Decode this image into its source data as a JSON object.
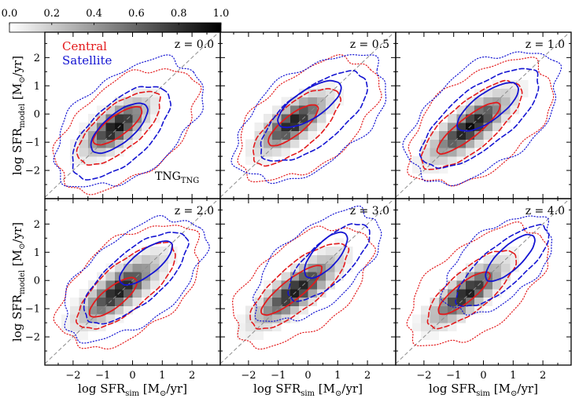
{
  "chart_data": {
    "type": "heatmap",
    "title": "",
    "xlabel": {
      "main": "log SFR",
      "sub": "sim",
      "unit_pre": " [M",
      "unit_sub": "⊙",
      "unit_post": "/yr]"
    },
    "ylabel": {
      "main": "log SFR",
      "sub": "model",
      "unit_pre": " [M",
      "unit_sub": "⊙",
      "unit_post": "/yr]"
    },
    "xlim": [
      -2.95,
      2.95
    ],
    "ylim": [
      -3.0,
      2.9
    ],
    "xticks": [
      -2,
      -1,
      0,
      1,
      2
    ],
    "xtick_labels": [
      "−2",
      "−1",
      "0",
      "1",
      "2"
    ],
    "yticks": [
      -2,
      -1,
      0,
      1,
      2
    ],
    "ytick_labels": [
      "−2",
      "−1",
      "0",
      "1",
      "2"
    ],
    "one_to_one_line": true,
    "heatmap_bin": 0.3,
    "colorbar": {
      "range": [
        0,
        1
      ],
      "ticks": [
        0,
        0.2,
        0.4,
        0.6,
        0.8,
        1.0
      ],
      "labels": [
        "0.0",
        "0.2",
        "0.4",
        "0.6",
        "0.8",
        "1.0"
      ],
      "cmap": "Greys"
    },
    "legend": [
      {
        "label": "Central",
        "color": "#e31a1c"
      },
      {
        "label": "Satellite",
        "color": "#1414d2"
      }
    ],
    "annotation": {
      "text": "TNG",
      "sub": "TNG"
    },
    "panels": [
      {
        "label": "z = 0.0",
        "density": {
          "cx": -0.55,
          "cy": -0.45,
          "sigma_major": 0.75,
          "sigma_minor": 0.32,
          "angle": 40,
          "peak": 0.95
        },
        "central": [
          {
            "style": "solid",
            "cx": -0.5,
            "cy": -0.42,
            "a": 1.0,
            "b": 0.35,
            "angle": 38
          },
          {
            "style": "dashed",
            "cx": -0.45,
            "cy": -0.5,
            "a": 1.75,
            "b": 0.75,
            "angle": 42
          },
          {
            "style": "dotted",
            "cx": -0.2,
            "cy": -0.55,
            "a": 2.8,
            "b": 1.6,
            "angle": 40
          }
        ],
        "satellite": [
          {
            "style": "solid",
            "cx": -0.45,
            "cy": -0.5,
            "a": 1.2,
            "b": 0.5,
            "angle": 42
          },
          {
            "style": "dashed",
            "cx": -0.4,
            "cy": -0.65,
            "a": 2.1,
            "b": 1.0,
            "angle": 45
          },
          {
            "style": "dotted",
            "cx": -0.15,
            "cy": -0.35,
            "a": 2.9,
            "b": 1.7,
            "angle": 40
          }
        ]
      },
      {
        "label": "z = 0.5",
        "density": {
          "cx": -0.5,
          "cy": -0.3,
          "sigma_major": 0.8,
          "sigma_minor": 0.32,
          "angle": 40,
          "peak": 0.9
        },
        "central": [
          {
            "style": "solid",
            "cx": -0.5,
            "cy": -0.4,
            "a": 1.05,
            "b": 0.35,
            "angle": 40
          },
          {
            "style": "dashed",
            "cx": -0.4,
            "cy": -0.45,
            "a": 1.85,
            "b": 0.75,
            "angle": 42
          },
          {
            "style": "dotted",
            "cx": 0.0,
            "cy": -0.2,
            "a": 2.8,
            "b": 1.55,
            "angle": 40
          }
        ],
        "satellite": [
          {
            "style": "solid",
            "cx": 0.05,
            "cy": 0.35,
            "a": 1.25,
            "b": 0.5,
            "angle": 35
          },
          {
            "style": "dashed",
            "cx": 0.2,
            "cy": -0.1,
            "a": 2.2,
            "b": 0.95,
            "angle": 40
          },
          {
            "style": "dotted",
            "cx": 0.1,
            "cy": -0.15,
            "a": 2.95,
            "b": 1.65,
            "angle": 38
          }
        ]
      },
      {
        "label": "z = 1.0",
        "density": {
          "cx": -0.45,
          "cy": -0.45,
          "sigma_major": 0.95,
          "sigma_minor": 0.32,
          "angle": 40,
          "peak": 0.95
        },
        "central": [
          {
            "style": "solid",
            "cx": -0.5,
            "cy": -0.5,
            "a": 1.35,
            "b": 0.35,
            "angle": 40
          },
          {
            "style": "dashed",
            "cx": -0.4,
            "cy": -0.4,
            "a": 2.15,
            "b": 0.8,
            "angle": 42
          },
          {
            "style": "dotted",
            "cx": -0.1,
            "cy": -0.3,
            "a": 2.85,
            "b": 1.6,
            "angle": 40
          }
        ],
        "satellite": [
          {
            "style": "solid",
            "cx": 0.15,
            "cy": 0.25,
            "a": 1.25,
            "b": 0.48,
            "angle": 38
          },
          {
            "style": "dashed",
            "cx": -0.1,
            "cy": -0.15,
            "a": 2.45,
            "b": 1.0,
            "angle": 40
          },
          {
            "style": "dotted",
            "cx": 0.0,
            "cy": -0.1,
            "a": 3.0,
            "b": 1.7,
            "angle": 40
          }
        ]
      },
      {
        "label": "z = 2.0",
        "density": {
          "cx": -0.45,
          "cy": -0.35,
          "sigma_major": 0.95,
          "sigma_minor": 0.33,
          "angle": 40,
          "peak": 0.9
        },
        "central": [
          {
            "style": "solid",
            "cx": -0.65,
            "cy": -0.6,
            "a": 1.0,
            "b": 0.35,
            "angle": 40
          },
          {
            "style": "dashed",
            "cx": -0.2,
            "cy": -0.2,
            "a": 2.1,
            "b": 0.8,
            "angle": 42
          },
          {
            "style": "dotted",
            "cx": -0.1,
            "cy": -0.2,
            "a": 2.8,
            "b": 1.6,
            "angle": 40
          }
        ],
        "satellite": [
          {
            "style": "solid",
            "cx": 0.45,
            "cy": 0.62,
            "a": 1.1,
            "b": 0.42,
            "angle": 40
          },
          {
            "style": "dashed",
            "cx": 0.1,
            "cy": 0.1,
            "a": 2.2,
            "b": 0.9,
            "angle": 42
          },
          {
            "style": "dotted",
            "cx": 0.05,
            "cy": 0.05,
            "a": 2.85,
            "b": 1.5,
            "angle": 40
          }
        ]
      },
      {
        "label": "z = 3.0",
        "density": {
          "cx": -0.4,
          "cy": -0.35,
          "sigma_major": 1.0,
          "sigma_minor": 0.32,
          "angle": 40,
          "peak": 0.9
        },
        "central": [
          {
            "style": "solid",
            "cx": -0.55,
            "cy": -0.35,
            "a": 1.3,
            "b": 0.35,
            "angle": 40
          },
          {
            "style": "dashed",
            "cx": -0.3,
            "cy": -0.2,
            "a": 2.1,
            "b": 0.75,
            "angle": 42
          },
          {
            "style": "dotted",
            "cx": -0.2,
            "cy": -0.2,
            "a": 2.75,
            "b": 1.5,
            "angle": 40
          }
        ],
        "satellite": [
          {
            "style": "solid",
            "cx": 0.6,
            "cy": 0.9,
            "a": 1.0,
            "b": 0.42,
            "angle": 50
          },
          {
            "style": "dashed",
            "cx": 0.7,
            "cy": 0.65,
            "a": 1.8,
            "b": 0.7,
            "angle": 45
          },
          {
            "style": "dotted",
            "cx": 0.3,
            "cy": 0.5,
            "a": 2.6,
            "b": 1.3,
            "angle": 42
          }
        ]
      },
      {
        "label": "z = 4.0",
        "density": {
          "cx": -0.55,
          "cy": -0.45,
          "sigma_major": 0.9,
          "sigma_minor": 0.3,
          "angle": 40,
          "peak": 0.9
        },
        "central": [
          {
            "style": "solid",
            "cx": -0.65,
            "cy": -0.45,
            "a": 1.1,
            "b": 0.33,
            "angle": 40
          },
          {
            "style": "dashed",
            "cx": -0.4,
            "cy": -0.3,
            "a": 1.9,
            "b": 0.7,
            "angle": 42
          },
          {
            "style": "dotted",
            "cx": -0.2,
            "cy": -0.2,
            "a": 2.8,
            "b": 1.45,
            "angle": 40
          }
        ],
        "satellite": [
          {
            "style": "solid",
            "cx": 0.9,
            "cy": 0.8,
            "a": 1.1,
            "b": 0.4,
            "angle": 45
          },
          {
            "style": "dashed",
            "cx": 0.65,
            "cy": 0.5,
            "a": 2.0,
            "b": 0.7,
            "angle": 42
          },
          {
            "style": "dotted",
            "cx": 0.5,
            "cy": 0.55,
            "a": 2.2,
            "b": 1.2,
            "angle": 42
          }
        ]
      }
    ]
  },
  "colors": {
    "one_to_one_line": "#8c8c8c",
    "frame": "#000000"
  }
}
